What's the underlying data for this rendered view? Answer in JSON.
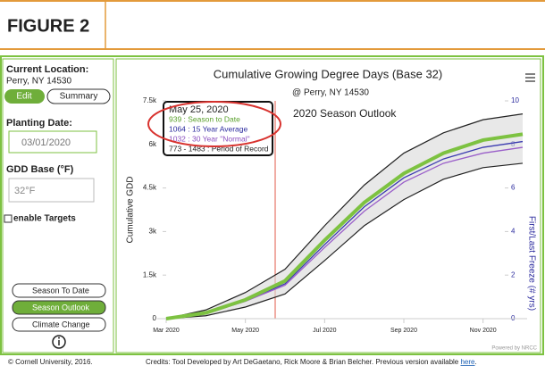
{
  "header": {
    "figure": "FIGURE 2"
  },
  "sidebar": {
    "location_label": "Current Location:",
    "location": "Perry, NY 14530",
    "edit": "Edit",
    "summary": "Summary",
    "planting_label": "Planting Date:",
    "planting_date": "03/01/2020",
    "gdd_base_label": "GDD Base (°F)",
    "gdd_base": "32°F",
    "targets": "enable Targets",
    "views": [
      "Season To Date",
      "Season Outlook",
      "Climate Change"
    ]
  },
  "chart_data": {
    "type": "line",
    "title": "Cumulative Growing Degree Days (Base 32)",
    "subtitle": "@ Perry, NY 14530",
    "annotation": "2020 Season Outlook",
    "y_label": "Cumulative GDD",
    "y2_label": "First/Last Freeze (# yrs)",
    "credit": "Powered by NRCC",
    "x": [
      "2020-03",
      "2020-04",
      "2020-05",
      "2020-06",
      "2020-07",
      "2020-08",
      "2020-09",
      "2020-10",
      "2020-11",
      "2020-12"
    ],
    "xlim": [
      "2020-03",
      "2020-12"
    ],
    "xticks": [
      {
        "value": "2020-03",
        "label": "Mar 2020"
      },
      {
        "value": "2020-05",
        "label": "May 2020"
      },
      {
        "value": "2020-07",
        "label": "Jul 2020"
      },
      {
        "value": "2020-09",
        "label": "Sep 2020"
      },
      {
        "value": "2020-11",
        "label": "Nov 2020"
      }
    ],
    "ylim": [
      0,
      7500
    ],
    "yticks": [
      0,
      {
        "value": 1500,
        "label": "1.5k"
      },
      {
        "value": 3000,
        "label": "3k"
      },
      {
        "value": 4500,
        "label": "4.5k"
      },
      {
        "value": 6000,
        "label": "6k"
      },
      {
        "value": 7500,
        "label": "7.5k"
      }
    ],
    "y2lim": [
      0,
      10
    ],
    "y2ticks": [
      0,
      2,
      4,
      6,
      8,
      10
    ],
    "band": {
      "color": "#d9d9d9",
      "high": [
        0,
        300,
        900,
        1700,
        3200,
        4600,
        5700,
        6400,
        6850,
        7050
      ],
      "low": [
        0,
        100,
        400,
        850,
        2000,
        3200,
        4100,
        4800,
        5200,
        5350
      ]
    },
    "series": [
      {
        "color": "#3b3bb0",
        "values": [
          0,
          180,
          620,
          1200,
          2550,
          3850,
          4850,
          5500,
          5900,
          6100
        ]
      },
      {
        "color": "#9a5fc9",
        "values": [
          0,
          170,
          600,
          1150,
          2450,
          3700,
          4700,
          5350,
          5700,
          5900
        ]
      },
      {
        "color": "#7dc241",
        "values": [
          0,
          200,
          650,
          1300,
          2700,
          4000,
          5000,
          5700,
          6150,
          6350
        ]
      }
    ],
    "tooltip": {
      "date": "May 25, 2020",
      "lines": [
        {
          "text": "939 : Season to Date",
          "color": "#5aa02c"
        },
        {
          "text": "1064 : 15 Year Average",
          "color": "#2b2b9e"
        },
        {
          "text": "1032 : 30 Year \"Normal\"",
          "color": "#8a4fbf"
        },
        {
          "text": "773 - 1483 : Period of Record",
          "color": "#222"
        }
      ]
    }
  },
  "footer": {
    "copyright": "© Cornell University, 2016.",
    "credits": "Credits: Tool Developed by Art DeGaetano, Rick Moore & Brian Belcher. Previous version available ",
    "link": "here",
    "end": "."
  }
}
